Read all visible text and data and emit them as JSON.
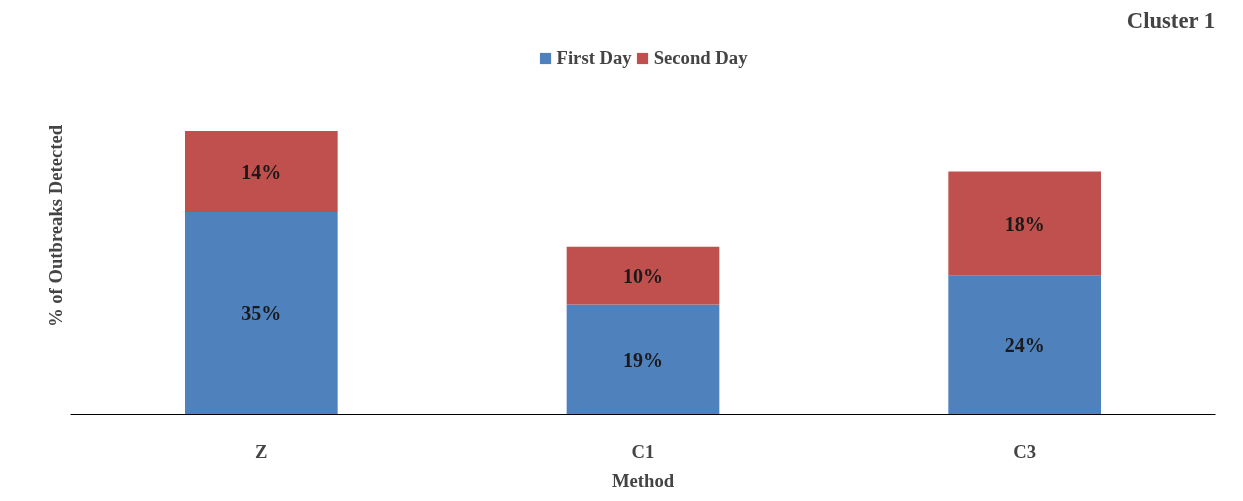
{
  "chart_data": {
    "type": "bar",
    "title": "Cluster 1",
    "xlabel": "Method",
    "ylabel": "% of Outbreaks Detected",
    "categories": [
      "Z",
      "C1",
      "C3"
    ],
    "stacked": true,
    "series": [
      {
        "name": "First Day",
        "color": "#4f81bd",
        "values": [
          35,
          19,
          24
        ],
        "value_labels": [
          "35%",
          "19%",
          "24%"
        ]
      },
      {
        "name": "Second Day",
        "color": "#c0504d",
        "values": [
          14,
          10,
          18
        ],
        "value_labels": [
          "14%",
          "10%",
          "18%"
        ]
      }
    ],
    "legend": "top",
    "grid": false
  }
}
